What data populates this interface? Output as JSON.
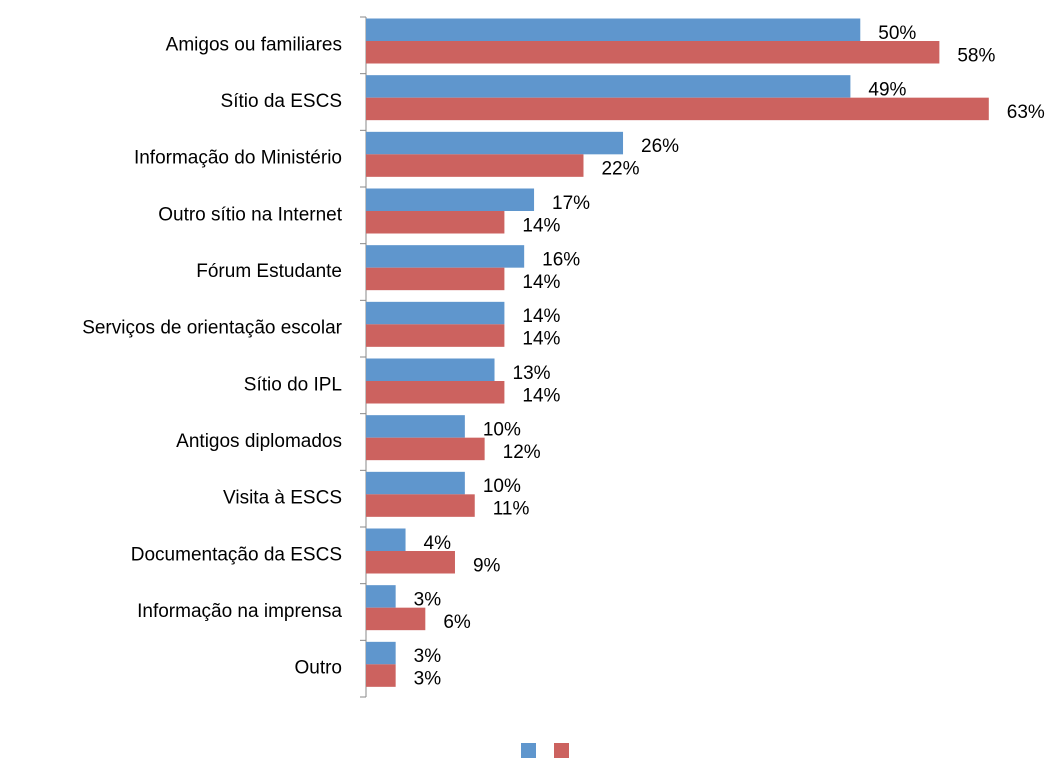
{
  "chart_data": {
    "type": "bar",
    "orientation": "horizontal",
    "categories": [
      "Amigos ou familiares",
      "Sítio da ESCS",
      "Informação do Ministério",
      "Outro sítio na Internet",
      "Fórum Estudante",
      "Serviços de orientação escolar",
      "Sítio do IPL",
      "Antigos diplomados",
      "Visita à ESCS",
      "Documentação da ESCS",
      "Informação na imprensa",
      "Outro"
    ],
    "series": [
      {
        "color": "#5f96cd",
        "values": [
          50,
          49,
          26,
          17,
          16,
          14,
          13,
          10,
          10,
          4,
          3,
          3
        ],
        "value_labels": [
          "50%",
          "49%",
          "26%",
          "17%",
          "16%",
          "14%",
          "13%",
          "10%",
          "10%",
          "4%",
          "3%",
          "3%"
        ]
      },
      {
        "color": "#cc625f",
        "values": [
          58,
          63,
          22,
          14,
          14,
          14,
          14,
          12,
          11,
          9,
          6,
          3
        ],
        "value_labels": [
          "58%",
          "63%",
          "22%",
          "14%",
          "14%",
          "14%",
          "14%",
          "12%",
          "11%",
          "9%",
          "6%",
          "3%"
        ]
      }
    ],
    "xlim": [
      0,
      70
    ]
  }
}
